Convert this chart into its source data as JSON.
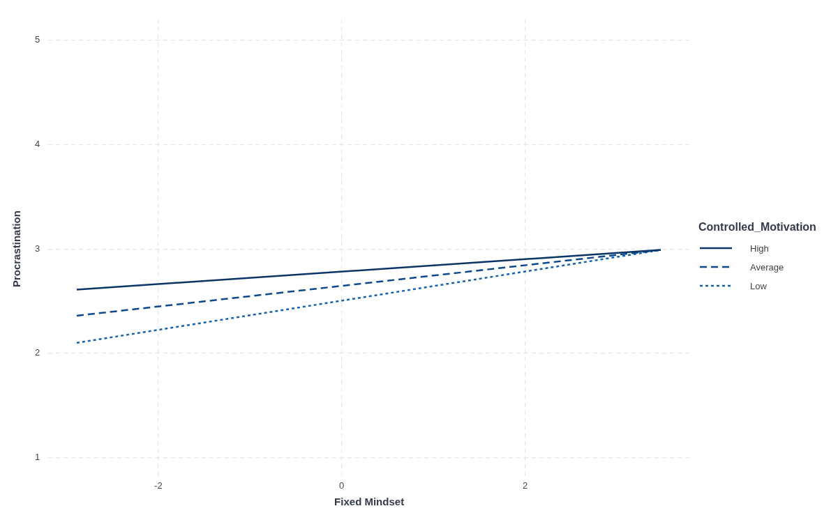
{
  "chart_data": {
    "type": "line",
    "xlabel": "Fixed Mindset",
    "ylabel": "Procrastination",
    "legend_title": "Controlled_Motivation",
    "xlim": [
      -3.2,
      3.8
    ],
    "xticks": [
      -2,
      0,
      2
    ],
    "ylim": [
      0.8,
      5.2
    ],
    "yticks": [
      1,
      2,
      3,
      4,
      5
    ],
    "grid": true,
    "legend": "right",
    "marker": "none",
    "x": [
      -2.89,
      3.48
    ],
    "series": [
      {
        "name": "High",
        "color": "#0b3566",
        "line_style": "solid",
        "values": [
          2.61,
          2.99
        ]
      },
      {
        "name": "Average",
        "color": "#0d4a8c",
        "line_style": "dashed",
        "values": [
          2.36,
          2.99
        ]
      },
      {
        "name": "Low",
        "color": "#1463ad",
        "line_style": "dotted",
        "values": [
          2.1,
          2.99
        ]
      }
    ]
  }
}
